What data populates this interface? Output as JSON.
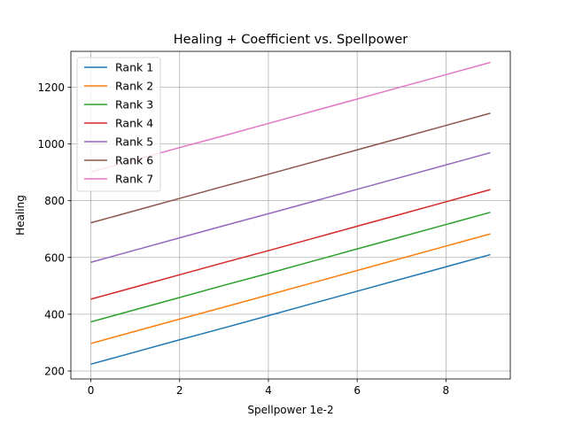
{
  "chart_data": {
    "type": "line",
    "title": "Healing + Coefficient vs. Spellpower",
    "xlabel": "Spellpower 1e-2",
    "ylabel": "Healing",
    "x": [
      0,
      1,
      2,
      3,
      4,
      5,
      6,
      7,
      8,
      9
    ],
    "xlim": [
      -0.45,
      9.45
    ],
    "ylim": [
      172,
      1326
    ],
    "xticks": [
      0,
      2,
      4,
      6,
      8
    ],
    "yticks": [
      200,
      400,
      600,
      800,
      1000,
      1200
    ],
    "grid": true,
    "legend_position": "upper-left",
    "series": [
      {
        "name": "Rank 1",
        "color": "#1f77b4",
        "values": [
          224,
          267,
          310,
          352,
          395,
          438,
          481,
          524,
          567,
          610
        ]
      },
      {
        "name": "Rank 2",
        "color": "#ff7f0e",
        "values": [
          297,
          340,
          383,
          425,
          468,
          511,
          554,
          597,
          640,
          683
        ]
      },
      {
        "name": "Rank 3",
        "color": "#2ca02c",
        "values": [
          373,
          416,
          459,
          502,
          544,
          587,
          630,
          673,
          716,
          759
        ]
      },
      {
        "name": "Rank 4",
        "color": "#d62728",
        "values": [
          453,
          496,
          539,
          582,
          624,
          667,
          710,
          753,
          796,
          839
        ]
      },
      {
        "name": "Rank 5",
        "color": "#9467bd",
        "values": [
          583,
          626,
          669,
          712,
          754,
          797,
          840,
          883,
          926,
          969
        ]
      },
      {
        "name": "Rank 6",
        "color": "#8c564b",
        "values": [
          722,
          765,
          808,
          851,
          893,
          936,
          979,
          1022,
          1065,
          1108
        ]
      },
      {
        "name": "Rank 7",
        "color": "#e377c2",
        "values": [
          901,
          944,
          987,
          1029,
          1072,
          1115,
          1158,
          1201,
          1244,
          1287
        ]
      }
    ]
  }
}
